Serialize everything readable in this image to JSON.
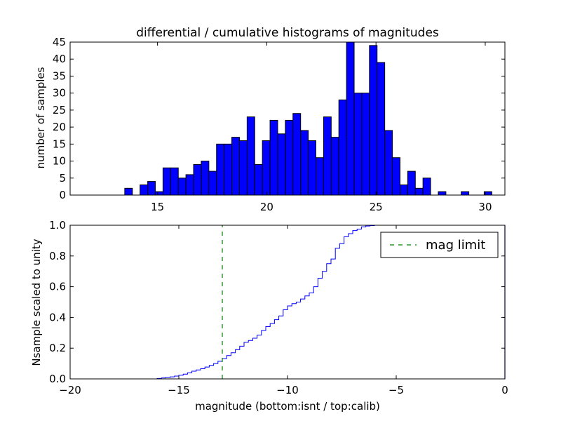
{
  "chart_data": [
    {
      "type": "bar",
      "title": "differential / cumulative histograms of magnitudes",
      "xlabel": "",
      "ylabel": "number of samples",
      "xlim": [
        11.0,
        30.9
      ],
      "ylim": [
        0,
        45
      ],
      "xticks": [
        15,
        20,
        25,
        30
      ],
      "yticks": [
        0,
        5,
        10,
        15,
        20,
        25,
        30,
        35,
        40,
        45
      ],
      "bins": {
        "start": 13.5,
        "width": 0.35
      },
      "values": [
        2,
        0,
        3,
        4,
        1,
        8,
        8,
        5,
        6,
        9,
        10,
        7,
        15,
        15,
        17,
        16,
        23,
        9,
        16,
        22,
        18,
        22,
        24,
        19,
        16,
        11,
        23,
        17,
        28,
        45,
        30,
        30,
        44,
        39,
        19,
        11,
        3,
        7,
        2,
        5,
        0,
        1,
        0,
        0,
        1,
        0,
        0,
        1
      ],
      "color": "#0000ff",
      "grid": false
    },
    {
      "type": "line",
      "title": "",
      "xlabel": "magnitude (bottom:isnt / top:calib)",
      "ylabel": "Nsample scaled to unity",
      "xlim": [
        -20,
        0
      ],
      "ylim": [
        0,
        1.0
      ],
      "xticks": [
        -20,
        -15,
        -10,
        -5,
        0
      ],
      "xtick_labels": [
        "−20",
        "−15",
        "−10",
        "−5",
        "0"
      ],
      "yticks": [
        0.0,
        0.2,
        0.4,
        0.6,
        0.8,
        1.0
      ],
      "series": [
        {
          "style": "step",
          "color": "#0000ff",
          "x": [
            -20.0,
            -16.2,
            -16.0,
            -15.8,
            -15.6,
            -15.4,
            -15.2,
            -15.0,
            -14.8,
            -14.6,
            -14.4,
            -14.2,
            -14.0,
            -13.8,
            -13.6,
            -13.4,
            -13.2,
            -13.0,
            -12.8,
            -12.6,
            -12.4,
            -12.2,
            -12.0,
            -11.8,
            -11.6,
            -11.4,
            -11.2,
            -11.0,
            -10.8,
            -10.6,
            -10.4,
            -10.2,
            -10.0,
            -9.8,
            -9.6,
            -9.4,
            -9.2,
            -9.0,
            -8.8,
            -8.6,
            -8.4,
            -8.2,
            -8.0,
            -7.8,
            -7.6,
            -7.4,
            -7.2,
            -7.0,
            -6.8,
            -6.6,
            -6.4,
            -6.2,
            -6.0,
            -5.5,
            -5.0,
            -4.0,
            -2.0,
            0.0
          ],
          "y": [
            0.0,
            0.0,
            0.003,
            0.006,
            0.009,
            0.013,
            0.018,
            0.024,
            0.031,
            0.04,
            0.05,
            0.058,
            0.066,
            0.077,
            0.088,
            0.1,
            0.115,
            0.132,
            0.152,
            0.17,
            0.19,
            0.213,
            0.238,
            0.25,
            0.265,
            0.285,
            0.315,
            0.34,
            0.36,
            0.385,
            0.41,
            0.45,
            0.475,
            0.49,
            0.5,
            0.52,
            0.54,
            0.56,
            0.6,
            0.655,
            0.7,
            0.75,
            0.78,
            0.85,
            0.88,
            0.925,
            0.945,
            0.965,
            0.975,
            0.99,
            0.995,
            0.998,
            1.0,
            1.0,
            1.0,
            1.0,
            1.0,
            1.0
          ]
        },
        {
          "name": "mag limit",
          "style": "dashed-vertical",
          "color": "#008000",
          "x": [
            -13.0,
            -13.0
          ],
          "y": [
            0.0,
            1.0
          ]
        }
      ],
      "legend": "top-right",
      "grid": false
    }
  ]
}
